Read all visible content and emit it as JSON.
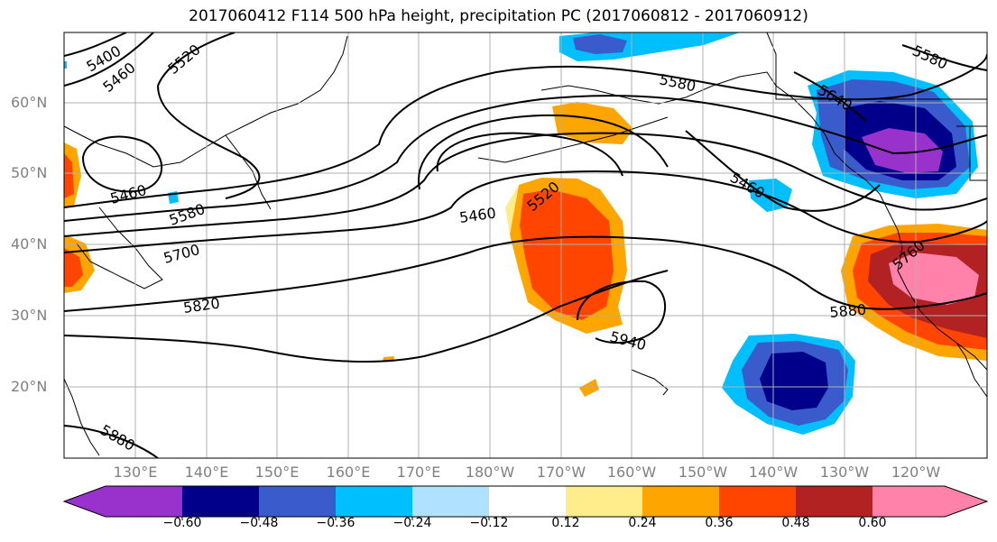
{
  "title": "2017060412 F114 500 hPa height, precipitation PC (2017060812 - 2017060912)",
  "lat_labels": [
    "60°N",
    "50°N",
    "40°N",
    "30°N",
    "20°N"
  ],
  "lon_labels": [
    "130°E",
    "140°E",
    "150°E",
    "160°E",
    "170°E",
    "180°W",
    "170°W",
    "160°W",
    "150°W",
    "140°W",
    "130°W",
    "120°W"
  ],
  "colorbar": {
    "ticks": [
      "−0.60",
      "−0.48",
      "−0.36",
      "−0.24",
      "−0.12",
      "0.12",
      "0.24",
      "0.36",
      "0.48",
      "0.60"
    ],
    "colors": [
      "#9932cc",
      "#00008b",
      "#3a5bcc",
      "#00bfff",
      "#b0e2ff",
      "#ffffff",
      "#ffec8b",
      "#ffa500",
      "#ff4500",
      "#b22222",
      "#ff82ab"
    ]
  },
  "contour_labels": [
    "5400",
    "5460",
    "5520",
    "5460",
    "5580",
    "5700",
    "5820",
    "5880",
    "5460",
    "5520",
    "5940",
    "5580",
    "5640",
    "5460",
    "5580",
    "5760",
    "5880"
  ],
  "colors": {
    "contour": "#000000",
    "grid": "#b0b0b0",
    "label": "#808080"
  }
}
